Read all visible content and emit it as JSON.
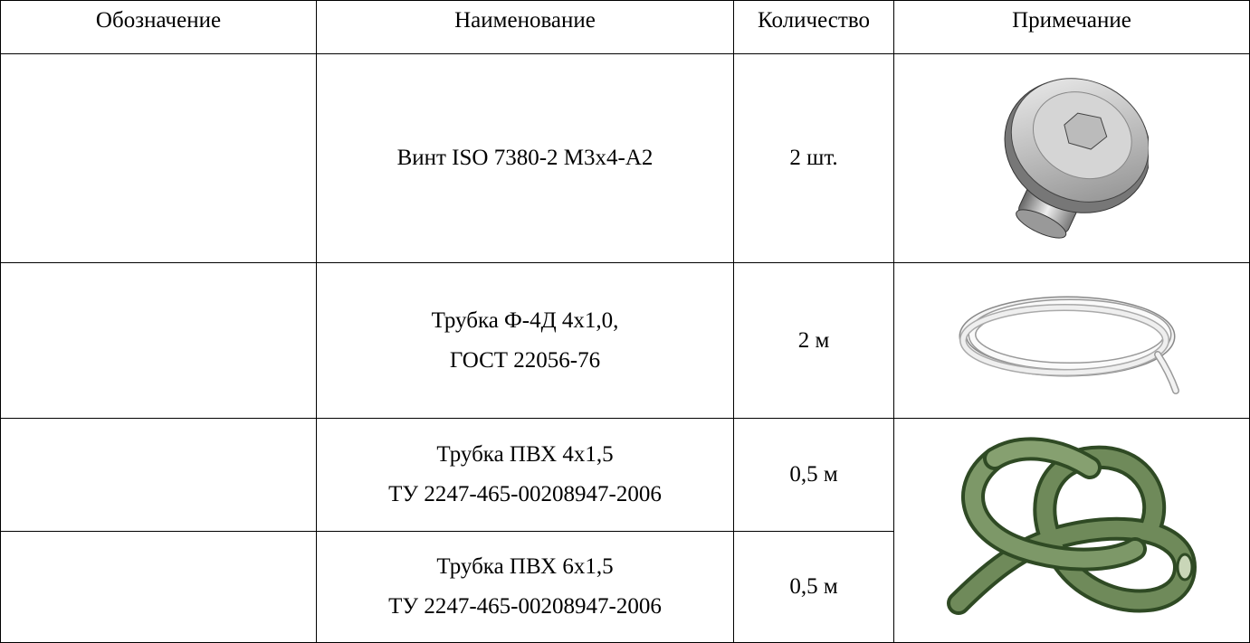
{
  "table": {
    "header": [
      "Обозначение",
      "Наименование",
      "Количество",
      "Примечание"
    ],
    "rows": [
      {
        "name": [
          "Винт ISO 7380-2 M3x4-A2"
        ],
        "quantity": "2 шт."
      },
      {
        "name": [
          "Трубка Ф-4Д 4х1,0,",
          "ГОСТ 22056-76"
        ],
        "quantity": "2 м"
      },
      {
        "name": [
          "Трубка ПВХ 4х1,5",
          "ТУ 2247-465-00208947-2006"
        ],
        "quantity": "0,5 м"
      },
      {
        "name": [
          "Трубка ПВХ 6х1,5",
          "ТУ 2247-465-00208947-2006"
        ],
        "quantity": "0,5 м"
      }
    ]
  }
}
